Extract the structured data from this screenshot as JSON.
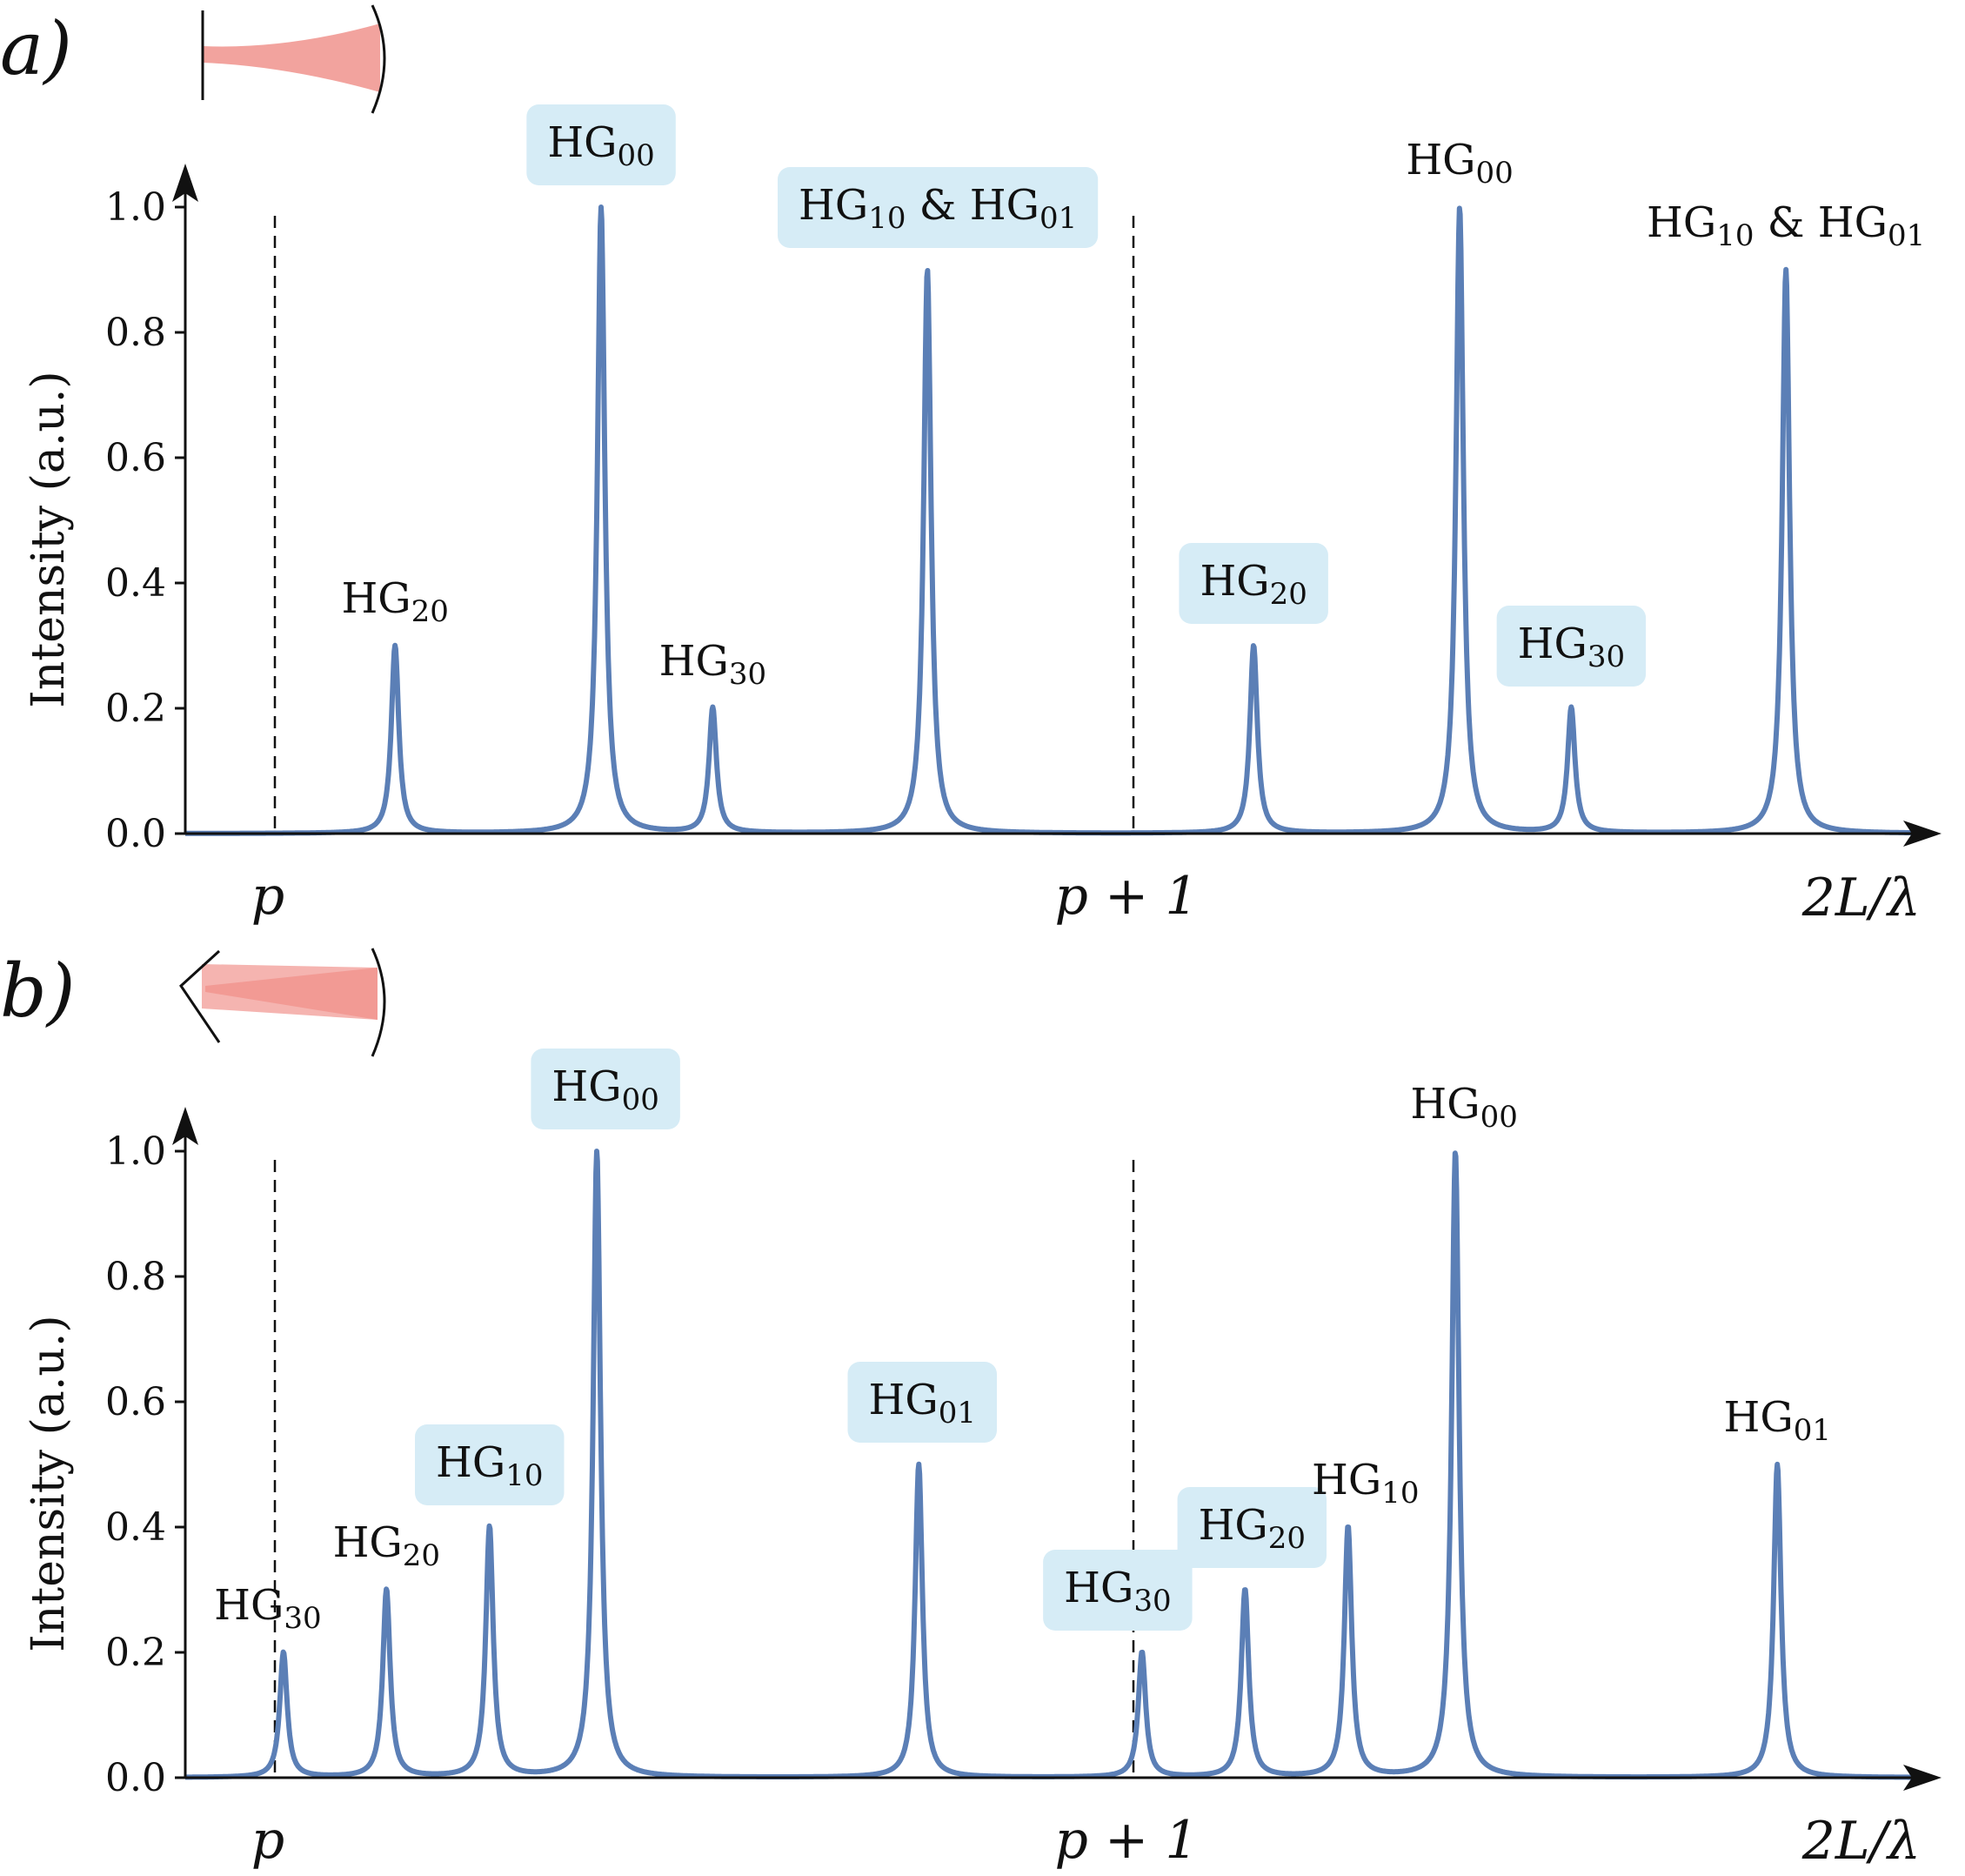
{
  "chart_data": [
    {
      "type": "line",
      "panel_label": "a)",
      "ylabel": "Intensity (a.u.)",
      "xlabel": "2L/λ",
      "ylim": [
        0,
        1.0
      ],
      "yticks": [
        "0.0",
        "0.2",
        "0.4",
        "0.6",
        "0.8",
        "1.0"
      ],
      "x_markers": [
        {
          "label": "p",
          "x": 0.0
        },
        {
          "label": "p + 1",
          "x": 1.0
        }
      ],
      "grid": false,
      "color": "#5b7fb6",
      "series": [
        {
          "peaks": [
            {
              "x": 0.14,
              "y": 0.3,
              "label": "HG₂₀",
              "highlighted": false
            },
            {
              "x": 0.38,
              "y": 1.0,
              "label": "HG₀₀",
              "highlighted": true
            },
            {
              "x": 0.51,
              "y": 0.2,
              "label": "HG₃₀",
              "highlighted": false
            },
            {
              "x": 0.76,
              "y": 0.9,
              "label": "HG₁₀ & HG₀₁",
              "highlighted": true
            },
            {
              "x": 1.14,
              "y": 0.3,
              "label": "HG₂₀",
              "highlighted": true
            },
            {
              "x": 1.38,
              "y": 1.0,
              "label": "HG₀₀",
              "highlighted": false
            },
            {
              "x": 1.51,
              "y": 0.2,
              "label": "HG₃₀",
              "highlighted": true
            },
            {
              "x": 1.76,
              "y": 0.9,
              "label": "HG₁₀ & HG₀₁",
              "highlighted": false
            }
          ]
        }
      ]
    },
    {
      "type": "line",
      "panel_label": "b)",
      "ylabel": "Intensity (a.u.)",
      "xlabel": "2L/λ",
      "ylim": [
        0,
        1.0
      ],
      "yticks": [
        "0.0",
        "0.2",
        "0.4",
        "0.6",
        "0.8",
        "1.0"
      ],
      "x_markers": [
        {
          "label": "p",
          "x": 0.0
        },
        {
          "label": "p + 1",
          "x": 1.0
        }
      ],
      "grid": false,
      "color": "#5b7fb6",
      "series": [
        {
          "peaks": [
            {
              "x": 0.01,
              "y": 0.2,
              "label": "HG₃₀",
              "highlighted": false
            },
            {
              "x": 0.13,
              "y": 0.3,
              "label": "HG₂₀",
              "highlighted": false
            },
            {
              "x": 0.25,
              "y": 0.4,
              "label": "HG₁₀",
              "highlighted": true
            },
            {
              "x": 0.375,
              "y": 1.0,
              "label": "HG₀₀",
              "highlighted": true
            },
            {
              "x": 0.75,
              "y": 0.5,
              "label": "HG₀₁",
              "highlighted": true
            },
            {
              "x": 1.01,
              "y": 0.2,
              "label": "HG₃₀",
              "highlighted": true
            },
            {
              "x": 1.13,
              "y": 0.3,
              "label": "HG₂₀",
              "highlighted": true
            },
            {
              "x": 1.25,
              "y": 0.4,
              "label": "HG₁₀",
              "highlighted": false
            },
            {
              "x": 1.375,
              "y": 1.0,
              "label": "HG₀₀",
              "highlighted": false
            },
            {
              "x": 1.75,
              "y": 0.5,
              "label": "HG₀₁",
              "highlighted": false
            }
          ]
        }
      ]
    }
  ]
}
